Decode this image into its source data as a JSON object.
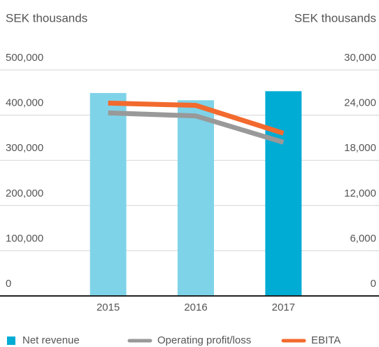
{
  "chart_data": {
    "type": "bar",
    "y_label": "SEK thousands",
    "y2_label": "SEK thousands",
    "categories": [
      "2015",
      "2016",
      "2017"
    ],
    "series": [
      {
        "name": "Net revenue",
        "type": "bar",
        "color": "#00acd4",
        "bar_colors": [
          "#7fd3e8",
          "#7fd3e8",
          "#00acd4"
        ],
        "values": [
          449000,
          433000,
          453000
        ]
      },
      {
        "name": "Operating profit/loss",
        "type": "line",
        "axis": "y2",
        "color": "#999999",
        "values": [
          24300,
          23900,
          20400
        ]
      },
      {
        "name": "EBITA",
        "type": "line",
        "axis": "y2",
        "color": "#f26a2e",
        "values": [
          25600,
          25300,
          21600
        ]
      }
    ],
    "ylim": [
      0,
      500000
    ],
    "yticks": [
      0,
      {
        "value": 100000,
        "label": "100,000"
      },
      {
        "value": 200000,
        "label": "200,000"
      },
      {
        "value": 300000,
        "label": "300,000"
      },
      {
        "value": 400000,
        "label": "400,000"
      },
      {
        "value": 500000,
        "label": "500,000"
      }
    ],
    "y2lim": [
      0,
      30000
    ],
    "y2ticks": [
      0,
      {
        "value": 6000,
        "label": "6,000"
      },
      {
        "value": 12000,
        "label": "12,000"
      },
      {
        "value": 18000,
        "label": "18,000"
      },
      {
        "value": 24000,
        "label": "24,000"
      },
      {
        "value": 30000,
        "label": "30,000"
      }
    ],
    "grid": true,
    "legend": "bottom"
  }
}
